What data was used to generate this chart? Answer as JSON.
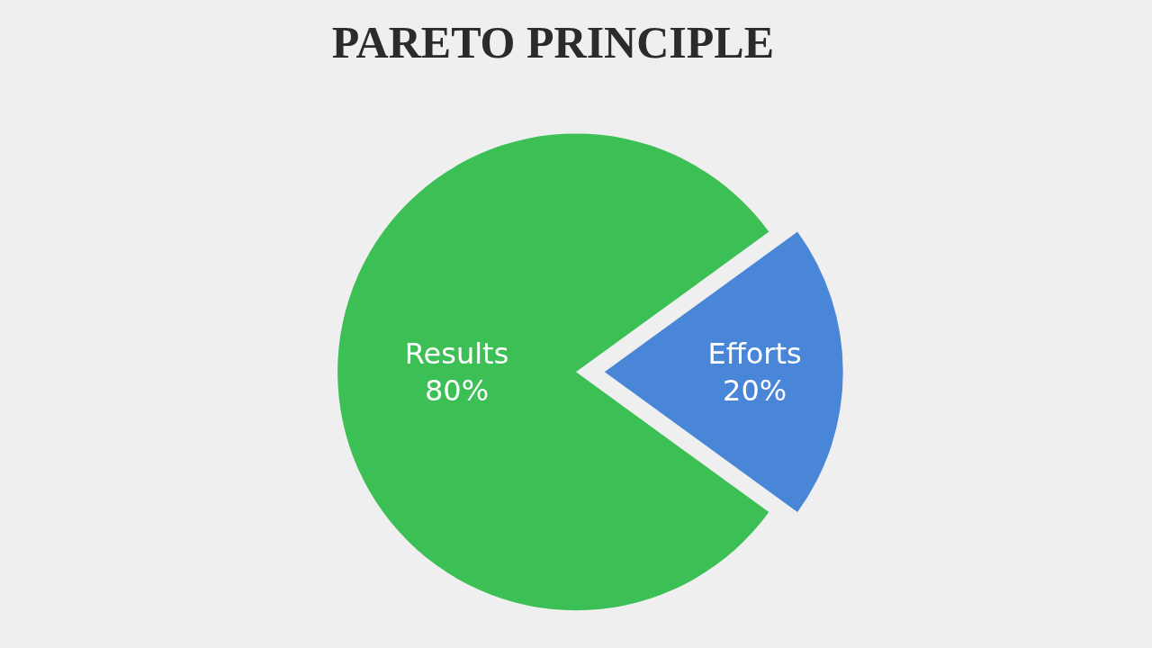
{
  "chart_data": {
    "type": "pie",
    "title": "PARETO PRINCIPLE",
    "categories": [
      "Efforts",
      "Results"
    ],
    "values": [
      20,
      80
    ],
    "value_labels": [
      "20%",
      "80%"
    ],
    "colors": [
      "#4a86d8",
      "#3cbf55"
    ],
    "legend": false
  }
}
